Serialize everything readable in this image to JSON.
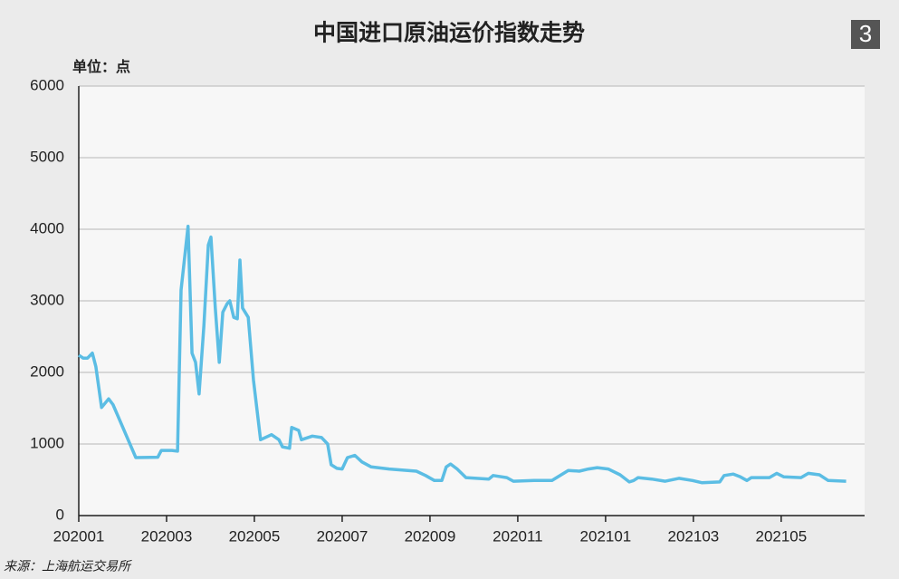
{
  "chart_data": {
    "type": "line",
    "title": "中国进口原油运价指数走势",
    "badge": "3",
    "unit_label": "单位：点",
    "source": "来源：上海航运交易所",
    "color": "#5bbde4",
    "x": [
      0,
      0.1,
      0.2,
      0.31,
      0.39,
      0.52,
      0.68,
      0.78,
      1.3,
      1.8,
      1.88,
      2.12,
      2.25,
      2.33,
      2.49,
      2.58,
      2.66,
      2.74,
      2.85,
      2.95,
      3.01,
      3.11,
      3.2,
      3.28,
      3.38,
      3.44,
      3.53,
      3.61,
      3.67,
      3.73,
      3.86,
      3.98,
      4.14,
      4.39,
      4.56,
      4.64,
      4.8,
      4.85,
      5.01,
      5.07,
      5.32,
      5.53,
      5.67,
      5.75,
      5.88,
      6.0,
      6.12,
      6.29,
      6.45,
      6.66,
      7.07,
      7.69,
      7.9,
      8.1,
      8.27,
      8.37,
      8.47,
      8.62,
      8.82,
      9.34,
      9.44,
      9.75,
      9.9,
      10.37,
      10.78,
      10.99,
      11.15,
      11.4,
      11.61,
      11.81,
      12.06,
      12.33,
      12.54,
      12.64,
      12.74,
      13.05,
      13.36,
      13.67,
      13.98,
      14.19,
      14.6,
      14.7,
      14.91,
      15.07,
      15.22,
      15.32,
      15.73,
      15.9,
      16.06,
      16.45,
      16.62,
      16.87,
      17.07,
      17.48
    ],
    "values": [
      2240,
      2200,
      2200,
      2270,
      2080,
      1510,
      1630,
      1550,
      810,
      815,
      910,
      910,
      900,
      3150,
      4040,
      2270,
      2140,
      1700,
      2650,
      3780,
      3890,
      2900,
      2140,
      2840,
      2960,
      3000,
      2770,
      2750,
      3570,
      2900,
      2770,
      1890,
      1060,
      1130,
      1060,
      960,
      940,
      1230,
      1190,
      1060,
      1110,
      1090,
      1000,
      710,
      660,
      650,
      810,
      840,
      750,
      680,
      650,
      620,
      560,
      490,
      490,
      680,
      720,
      650,
      530,
      510,
      560,
      530,
      480,
      490,
      490,
      570,
      630,
      620,
      650,
      670,
      650,
      570,
      470,
      490,
      530,
      510,
      480,
      520,
      490,
      460,
      470,
      560,
      580,
      540,
      490,
      530,
      530,
      590,
      540,
      530,
      590,
      570,
      490,
      480
    ],
    "xlim": [
      0,
      17.9
    ],
    "xticks": [
      {
        "value": 0,
        "label": "202001"
      },
      {
        "value": 2,
        "label": "202003"
      },
      {
        "value": 4,
        "label": "202005"
      },
      {
        "value": 6,
        "label": "202007"
      },
      {
        "value": 8,
        "label": "202009"
      },
      {
        "value": 10,
        "label": "202011"
      },
      {
        "value": 12,
        "label": "202101"
      },
      {
        "value": 14,
        "label": "202103"
      },
      {
        "value": 16,
        "label": "202105"
      }
    ],
    "ylim": [
      0,
      6000
    ],
    "yticks": [
      0,
      1000,
      2000,
      3000,
      4000,
      5000,
      6000
    ],
    "grid": true
  }
}
